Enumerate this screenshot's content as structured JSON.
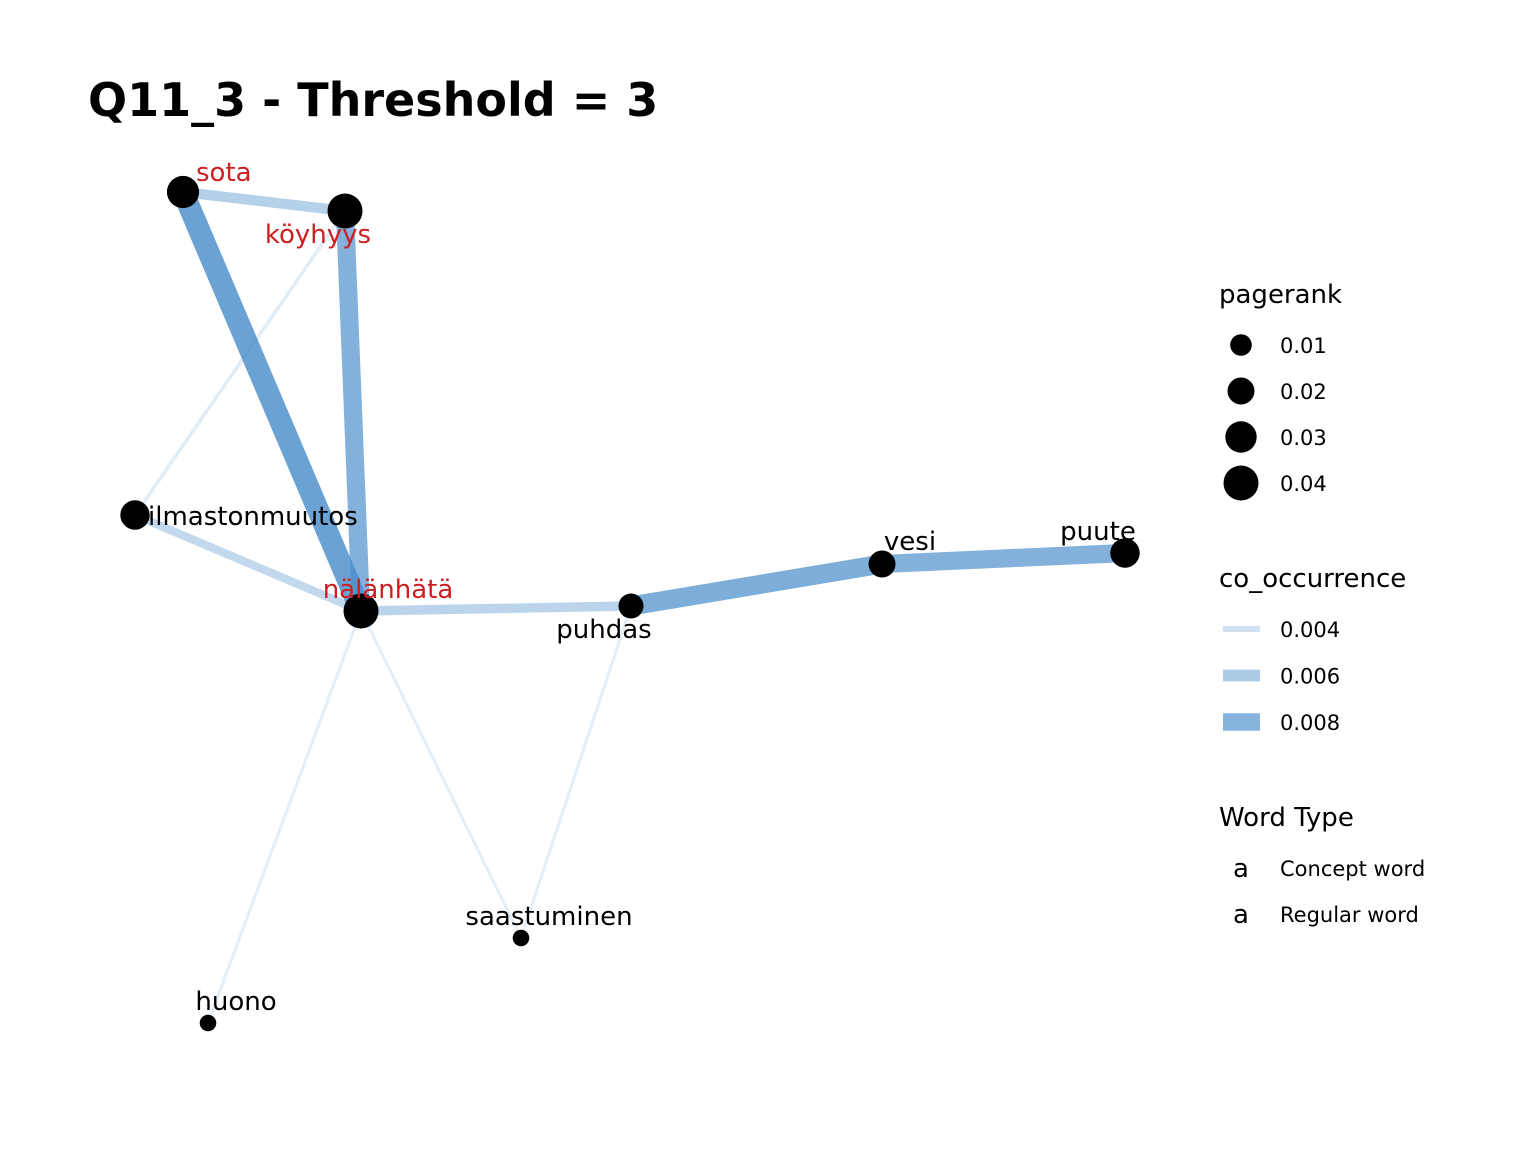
{
  "title": "Q11_3 - Threshold = 3",
  "colors": {
    "concept": "#cc1f1f",
    "regular": "#000000",
    "node_fill": "#000000",
    "edge": "#4a8ecb"
  },
  "nodes": [
    {
      "id": "sota",
      "label": "sota",
      "type": "concept",
      "pagerank": 0.032
    },
    {
      "id": "koyhyys",
      "label": "köyhyys",
      "type": "concept",
      "pagerank": 0.04
    },
    {
      "id": "ilmastonmuutos",
      "label": "ilmastonmuutos",
      "type": "regular",
      "pagerank": 0.025
    },
    {
      "id": "nalanhata",
      "label": "nälänhätä",
      "type": "concept",
      "pagerank": 0.04
    },
    {
      "id": "puhdas",
      "label": "puhdas",
      "type": "regular",
      "pagerank": 0.016
    },
    {
      "id": "vesi",
      "label": "vesi",
      "type": "regular",
      "pagerank": 0.02
    },
    {
      "id": "puute",
      "label": "puute",
      "type": "regular",
      "pagerank": 0.025
    },
    {
      "id": "saastuminen",
      "label": "saastuminen",
      "type": "regular",
      "pagerank": 0.004
    },
    {
      "id": "huono",
      "label": "huono",
      "type": "regular",
      "pagerank": 0.004
    }
  ],
  "edges": [
    {
      "source": "sota",
      "target": "nalanhata",
      "co_occurrence": 0.0095
    },
    {
      "source": "koyhyys",
      "target": "nalanhata",
      "co_occurrence": 0.0082
    },
    {
      "source": "sota",
      "target": "koyhyys",
      "co_occurrence": 0.0055
    },
    {
      "source": "koyhyys",
      "target": "ilmastonmuutos",
      "co_occurrence": 0.0032
    },
    {
      "source": "ilmastonmuutos",
      "target": "nalanhata",
      "co_occurrence": 0.0048
    },
    {
      "source": "nalanhata",
      "target": "puhdas",
      "co_occurrence": 0.0052
    },
    {
      "source": "puhdas",
      "target": "vesi",
      "co_occurrence": 0.0085
    },
    {
      "source": "vesi",
      "target": "puute",
      "co_occurrence": 0.0082
    },
    {
      "source": "nalanhata",
      "target": "huono",
      "co_occurrence": 0.003
    },
    {
      "source": "nalanhata",
      "target": "saastuminen",
      "co_occurrence": 0.003
    },
    {
      "source": "puhdas",
      "target": "saastuminen",
      "co_occurrence": 0.003
    }
  ],
  "legend": {
    "pagerank": {
      "title": "pagerank",
      "entries": [
        {
          "label": "0.01",
          "value": 0.01
        },
        {
          "label": "0.02",
          "value": 0.02
        },
        {
          "label": "0.03",
          "value": 0.03
        },
        {
          "label": "0.04",
          "value": 0.04
        }
      ]
    },
    "co_occurrence": {
      "title": "co_occurrence",
      "entries": [
        {
          "label": "0.004",
          "value": 0.004
        },
        {
          "label": "0.006",
          "value": 0.006
        },
        {
          "label": "0.008",
          "value": 0.008
        }
      ]
    },
    "word_type": {
      "title": "Word Type",
      "entries": [
        {
          "glyph": "a",
          "label": "Concept word",
          "type": "concept"
        },
        {
          "glyph": "a",
          "label": "Regular word",
          "type": "regular"
        }
      ]
    }
  }
}
